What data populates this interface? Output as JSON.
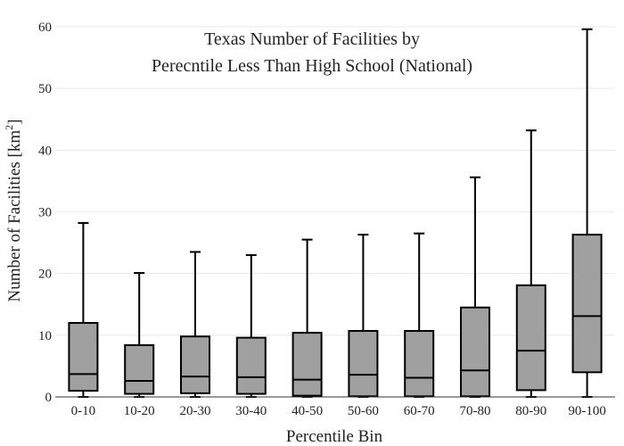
{
  "chart_data": {
    "type": "box",
    "title_lines": [
      "Texas Number of Facilities by",
      "Perecntile Less Than High School (National)"
    ],
    "xlabel": "Percentile Bin",
    "ylabel_text": "Number of Facilities  [km",
    "ylabel_sup": "2",
    "ylabel_close": "]",
    "ylim": [
      0,
      60
    ],
    "yticks": [
      0,
      10,
      20,
      30,
      40,
      50,
      60
    ],
    "grid": true,
    "box_color": "#a0a0a0",
    "categories": [
      "0-10",
      "10-20",
      "20-30",
      "30-40",
      "40-50",
      "50-60",
      "60-70",
      "70-80",
      "80-90",
      "90-100"
    ],
    "boxes": [
      {
        "min": 0,
        "q1": 1.0,
        "median": 3.7,
        "q3": 12.0,
        "max": 28.2
      },
      {
        "min": 0,
        "q1": 0.5,
        "median": 2.6,
        "q3": 8.4,
        "max": 20.1
      },
      {
        "min": 0,
        "q1": 0.6,
        "median": 3.3,
        "q3": 9.8,
        "max": 23.5
      },
      {
        "min": 0,
        "q1": 0.5,
        "median": 3.2,
        "q3": 9.6,
        "max": 23.0
      },
      {
        "min": 0,
        "q1": 0.2,
        "median": 2.8,
        "q3": 10.4,
        "max": 25.5
      },
      {
        "min": 0,
        "q1": 0.1,
        "median": 3.6,
        "q3": 10.7,
        "max": 26.3
      },
      {
        "min": 0,
        "q1": 0.1,
        "median": 3.1,
        "q3": 10.7,
        "max": 26.5
      },
      {
        "min": 0,
        "q1": 0.1,
        "median": 4.3,
        "q3": 14.5,
        "max": 35.6
      },
      {
        "min": 0,
        "q1": 1.1,
        "median": 7.5,
        "q3": 18.1,
        "max": 43.2
      },
      {
        "min": 0,
        "q1": 4.0,
        "median": 13.1,
        "q3": 26.3,
        "max": 59.6
      }
    ]
  }
}
